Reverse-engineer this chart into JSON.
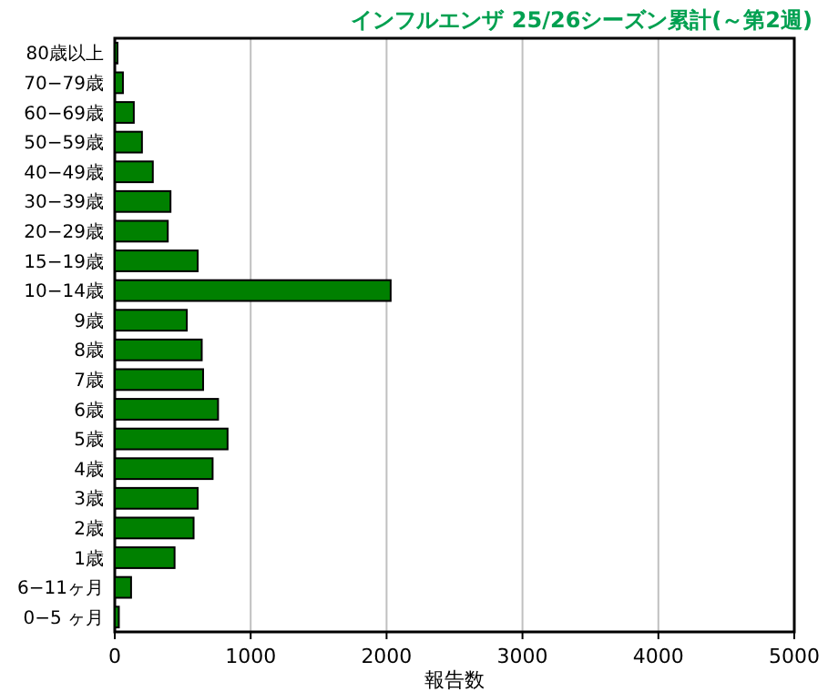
{
  "chart_data": {
    "type": "bar",
    "orientation": "horizontal",
    "title": "インフルエンザ 25/26シーズン累計(～第2週)",
    "xlabel": "報告数",
    "categories": [
      "80歳以上",
      "70−79歳",
      "60−69歳",
      "50−59歳",
      "40−49歳",
      "30−39歳",
      "20−29歳",
      "15−19歳",
      "10−14歳",
      "9歳",
      "8歳",
      "7歳",
      "6歳",
      "5歳",
      "4歳",
      "3歳",
      "2歳",
      "1歳",
      "6−11ヶ月",
      "0−5 ヶ月"
    ],
    "values": [
      20,
      60,
      140,
      200,
      280,
      410,
      390,
      610,
      2030,
      530,
      640,
      650,
      760,
      830,
      720,
      610,
      580,
      440,
      120,
      30
    ],
    "color": "#008000",
    "xlim": [
      0,
      5000
    ],
    "xticks": [
      0,
      1000,
      2000,
      3000,
      4000,
      5000
    ],
    "grid": "x"
  }
}
